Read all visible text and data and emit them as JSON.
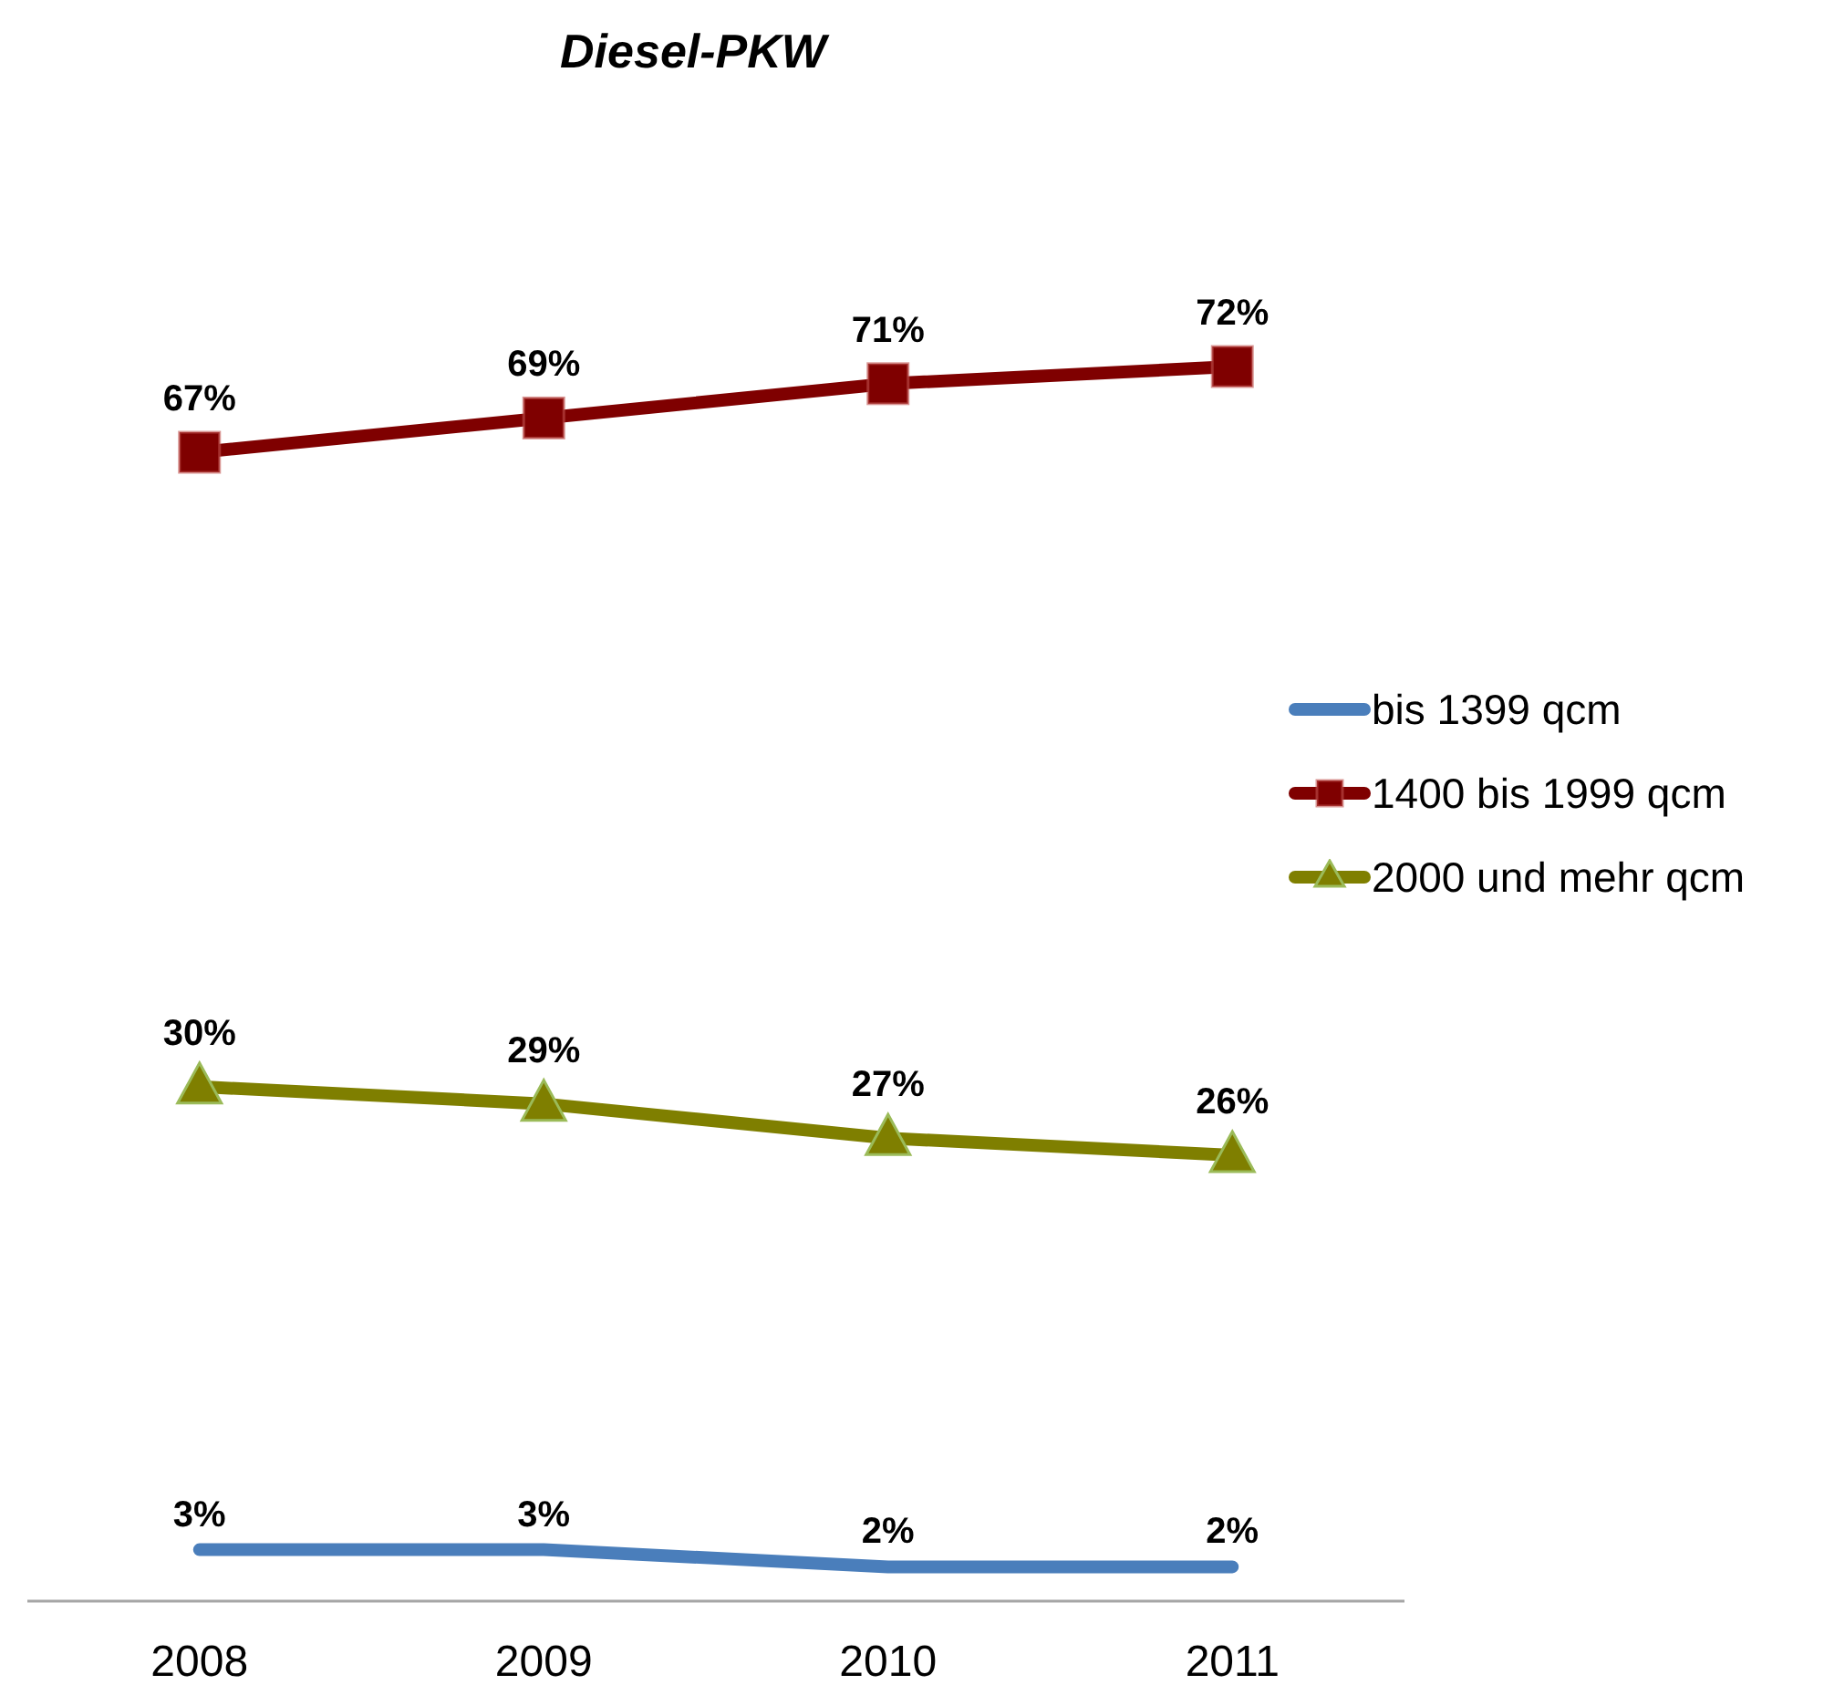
{
  "chart_data": {
    "type": "line",
    "title": "Diesel-PKW",
    "categories": [
      "2008",
      "2009",
      "2010",
      "2011"
    ],
    "series": [
      {
        "name": "bis 1399 qcm",
        "color": "#4a7ebb",
        "marker": "none",
        "values": [
          3,
          3,
          2,
          2
        ],
        "value_labels": [
          "3%",
          "3%",
          "2%",
          "2%"
        ]
      },
      {
        "name": "1400 bis 1999 qcm",
        "color": "#7f0000",
        "marker": "square",
        "values": [
          67,
          69,
          71,
          72
        ],
        "value_labels": [
          "67%",
          "69%",
          "71%",
          "72%"
        ]
      },
      {
        "name": "2000 und mehr qcm",
        "color": "#7f7f00",
        "marker": "triangle",
        "values": [
          30,
          29,
          27,
          26
        ],
        "value_labels": [
          "30%",
          "29%",
          "27%",
          "26%"
        ]
      }
    ],
    "tick_labels": "x",
    "legend": "right",
    "line_style": "solid"
  }
}
